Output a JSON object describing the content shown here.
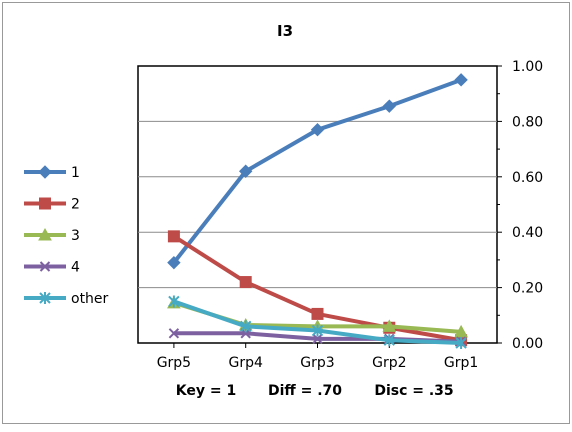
{
  "chart_data": {
    "type": "line",
    "title": "I3",
    "categories": [
      "Grp5",
      "Grp4",
      "Grp3",
      "Grp2",
      "Grp1"
    ],
    "ylim": [
      0,
      1
    ],
    "yticks": [
      "0.00",
      "0.20",
      "0.40",
      "0.60",
      "0.80",
      "1.00"
    ],
    "grid": true,
    "legend_position": "left",
    "series": [
      {
        "name": "1",
        "color": "#4a7ebb",
        "marker": "diamond",
        "values": [
          0.29,
          0.62,
          0.77,
          0.855,
          0.95
        ]
      },
      {
        "name": "2",
        "color": "#be4b48",
        "marker": "square",
        "values": [
          0.385,
          0.22,
          0.105,
          0.055,
          0.01
        ]
      },
      {
        "name": "3",
        "color": "#98b954",
        "marker": "triangle",
        "values": [
          0.145,
          0.065,
          0.06,
          0.06,
          0.04
        ]
      },
      {
        "name": "4",
        "color": "#7d60a0",
        "marker": "x",
        "values": [
          0.035,
          0.035,
          0.015,
          0.015,
          0.005
        ]
      },
      {
        "name": "other",
        "color": "#46aac5",
        "marker": "star",
        "values": [
          0.15,
          0.06,
          0.045,
          0.01,
          0.0
        ]
      }
    ],
    "footer": {
      "key": "Key = 1",
      "diff": "Diff = .70",
      "disc": "Disc = .35"
    }
  }
}
